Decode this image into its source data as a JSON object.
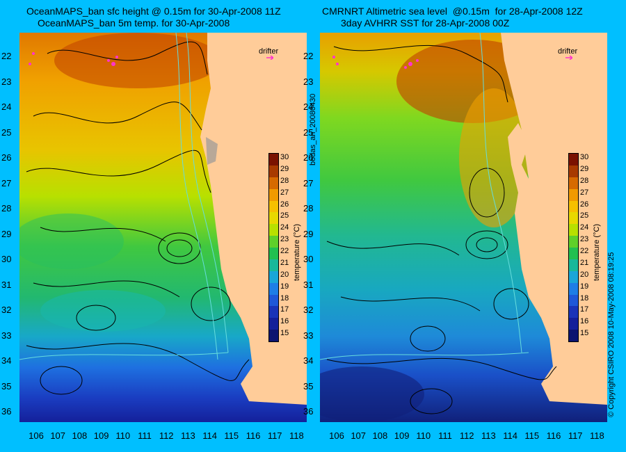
{
  "titles": {
    "left_line1": "OceanMAPS_ban sfc height @ 0.15m for 30-Apr-2008 11Z",
    "left_line2": "OceanMAPS_ban 5m temp. for 30-Apr-2008",
    "right_line1": "CMRNRT Altimetric sea level  @0.15m  for 28-Apr-2008 12Z",
    "right_line2": "3day AVHRR SST for 28-Apr-2008 00Z"
  },
  "latitude_labels": [
    "22",
    "23",
    "24",
    "25",
    "26",
    "27",
    "28",
    "29",
    "30",
    "31",
    "32",
    "33",
    "34",
    "35",
    "36"
  ],
  "longitude_labels": [
    "106",
    "107",
    "108",
    "109",
    "110",
    "111",
    "112",
    "113",
    "114",
    "115",
    "116",
    "117",
    "118"
  ],
  "colorbar": {
    "title": "temperature (°C)",
    "ticks": [
      "30",
      "29",
      "28",
      "27",
      "26",
      "25",
      "24",
      "23",
      "22",
      "21",
      "20",
      "19",
      "18",
      "17",
      "16",
      "15"
    ],
    "colors": [
      "#7a1200",
      "#a83a00",
      "#d66a00",
      "#f09a00",
      "#f6c000",
      "#e8d800",
      "#b8e000",
      "#5fd02a",
      "#22c050",
      "#18b89a",
      "#1aa6d8",
      "#1e7ee6",
      "#1f58d8",
      "#1a34b8",
      "#14209a",
      "#0c1470"
    ]
  },
  "drifter_label": "drifter",
  "side_text_left": "bodas_an_20080430",
  "side_text_right": "© Copyright CSIRO 2008    10-May-2008 08:19:25",
  "colors": {
    "background": "#00BFFF",
    "land": "#FFCC99",
    "drifter": "#FF33CC",
    "contour": "#000000",
    "current_lines": "#66DDDD"
  }
}
